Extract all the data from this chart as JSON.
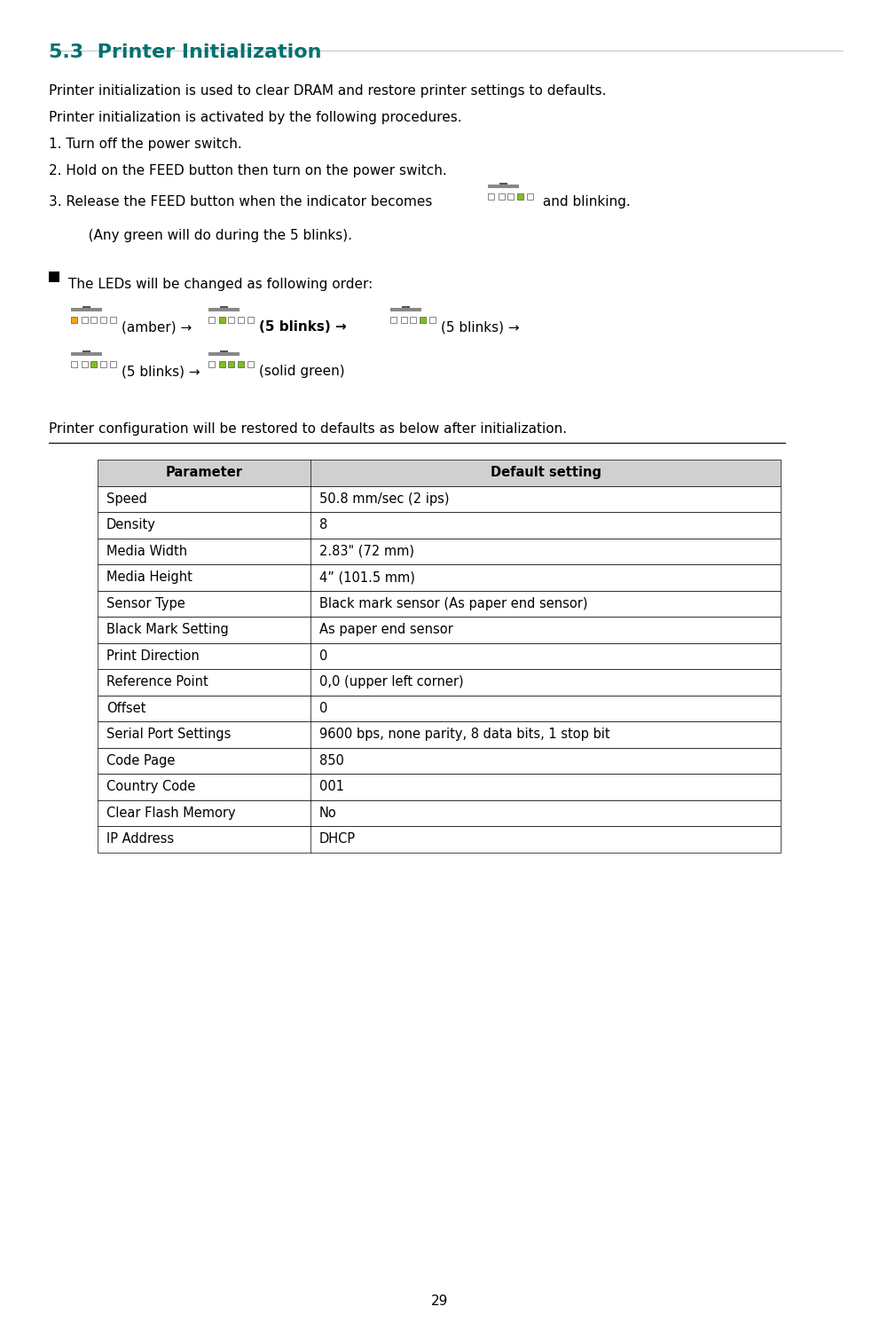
{
  "title": "5.3  Printer Initialization",
  "title_color": "#007070",
  "page_number": "29",
  "body_font_size": 11,
  "body_color": "#000000",
  "background_color": "#ffffff",
  "paragraphs": [
    "Printer initialization is used to clear DRAM and restore printer settings to defaults.",
    "Printer initialization is activated by the following procedures.",
    "1. Turn off the power switch.",
    "2. Hold on the FEED button then turn on the power switch."
  ],
  "step3_text": "3. Release the FEED button when the indicator becomes",
  "step3_suffix": " and blinking.",
  "any_green_text": "   (Any green will do during the 5 blinks).",
  "bullet_text": "The LEDs will be changed as following order:",
  "led_line1_amber": "(amber) →",
  "led_line1_blinks1": "(5 blinks) →",
  "led_line1_blinks2": "(5 blinks) →",
  "led_line2_blinks3": "(5 blinks) →",
  "led_line2_solid": "(solid green)",
  "config_intro": "Printer configuration will be restored to defaults as below after initialization.",
  "table_headers": [
    "Parameter",
    "Default setting"
  ],
  "table_rows": [
    [
      "Speed",
      "50.8 mm/sec (2 ips)"
    ],
    [
      "Density",
      "8"
    ],
    [
      "Media Width",
      "2.83\" (72 mm)"
    ],
    [
      "Media Height",
      "4” (101.5 mm)"
    ],
    [
      "Sensor Type",
      "Black mark sensor (As paper end sensor)"
    ],
    [
      "Black Mark Setting",
      "As paper end sensor"
    ],
    [
      "Print Direction",
      "0"
    ],
    [
      "Reference Point",
      "0,0 (upper left corner)"
    ],
    [
      "Offset",
      "0"
    ],
    [
      "Serial Port Settings",
      "9600 bps, none parity, 8 data bits, 1 stop bit"
    ],
    [
      "Code Page",
      "850"
    ],
    [
      "Country Code",
      "001"
    ],
    [
      "Clear Flash Memory",
      "No"
    ],
    [
      "IP Address",
      "DHCP"
    ]
  ],
  "table_header_bg": "#d0d0d0",
  "table_border_color": "#000000",
  "amber_color": "#FFA500",
  "green_color": "#7DC11A",
  "led_off_color": "#ffffff",
  "led_border_color": "#555555"
}
